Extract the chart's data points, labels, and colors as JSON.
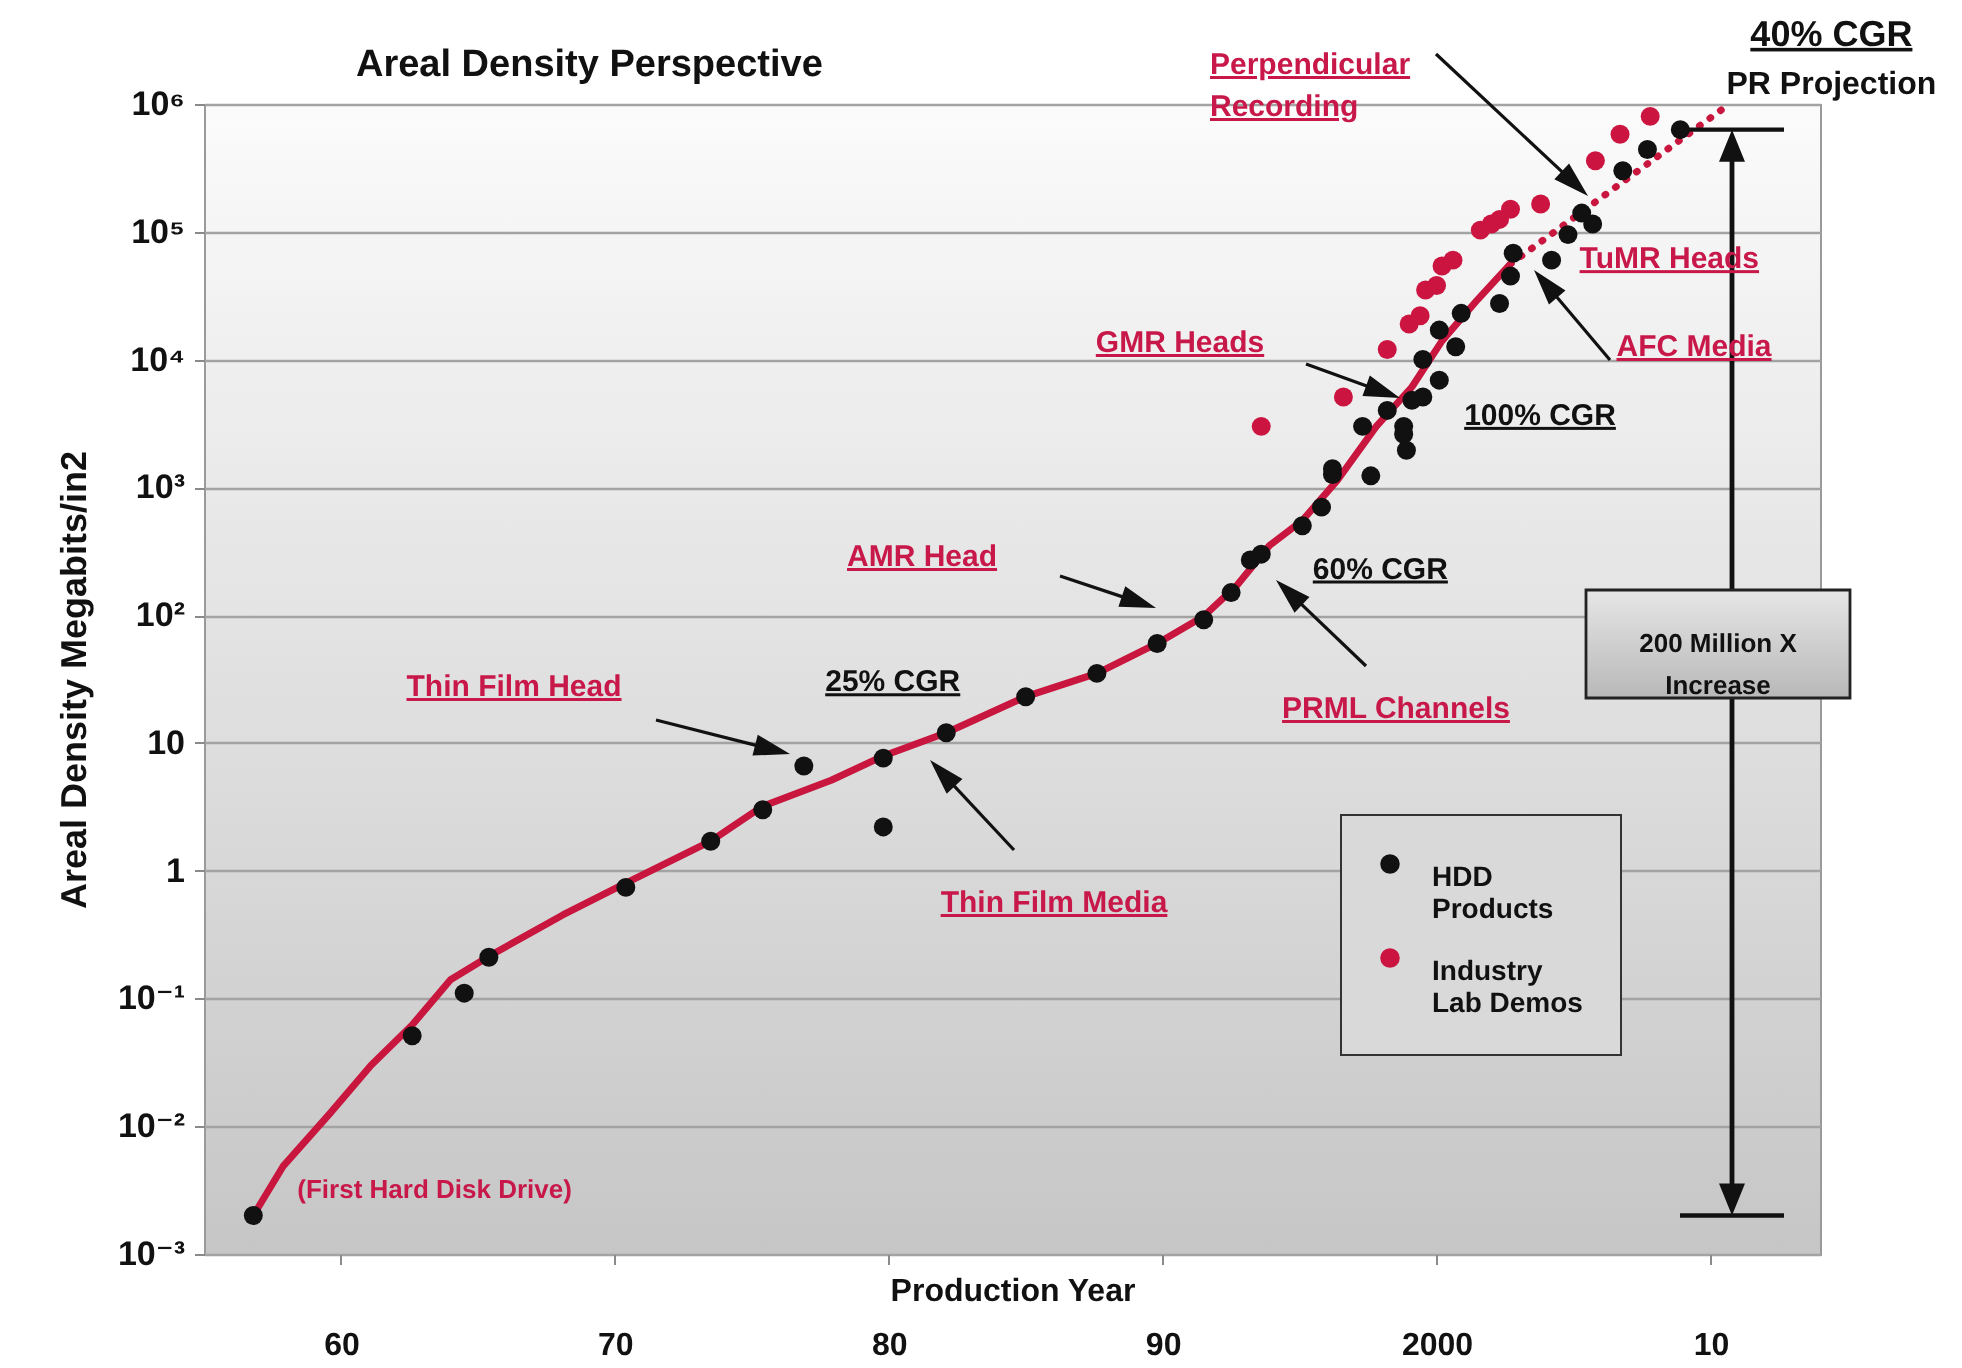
{
  "chart_data": {
    "type": "scatter",
    "title": "Areal Density Perspective",
    "xlabel": "Production Year",
    "ylabel": "Areal Density Megabits/in2",
    "xlim": [
      1955,
      2014
    ],
    "ylim": [
      0.001,
      1000000
    ],
    "log": "y",
    "xticks": [
      {
        "value": 1960,
        "label": "60"
      },
      {
        "value": 1970,
        "label": "70"
      },
      {
        "value": 1980,
        "label": "80"
      },
      {
        "value": 1990,
        "label": "90"
      },
      2000,
      {
        "value": 2010,
        "label": "10"
      }
    ],
    "yticks": [
      {
        "value": 0.001,
        "label": "10⁻³"
      },
      {
        "value": 0.01,
        "label": "10⁻²"
      },
      {
        "value": 0.1,
        "label": "10⁻¹"
      },
      1,
      10,
      {
        "value": 100,
        "label": "10²"
      },
      {
        "value": 1000,
        "label": "10³"
      },
      {
        "value": 10000,
        "label": "10⁴"
      },
      {
        "value": 100000,
        "label": "10⁵"
      },
      {
        "value": 1000000,
        "label": "10⁶"
      }
    ],
    "grid": "y",
    "legend": "bottom right",
    "marker": "circle",
    "line_style": "solid",
    "series": [
      {
        "name": "HDD Products",
        "color": "#111111",
        "x": [
          1956.8,
          1962.6,
          1964.5,
          1965.4,
          1970.4,
          1973.5,
          1975.4,
          1976.9,
          1979.8,
          1979.8,
          1982.1,
          1985.0,
          1987.6,
          1989.8,
          1991.5,
          1992.5,
          1993.2,
          1993.6,
          1995.1,
          1995.8,
          1996.2,
          1996.2,
          1997.3,
          1997.6,
          1998.2,
          1998.8,
          1998.8,
          1998.9,
          1999.1,
          1999.5,
          1999.5,
          2000.1,
          2000.1,
          2000.7,
          2000.9,
          2002.3,
          2002.7,
          2002.8,
          2004.2,
          2004.8,
          2005.3,
          2005.7,
          2006.8,
          2007.7,
          2008.9
        ],
        "values": [
          0.002,
          0.051,
          0.11,
          0.21,
          0.74,
          1.7,
          3.0,
          6.6,
          7.6,
          2.2,
          12,
          23,
          35,
          60,
          92,
          150,
          270,
          300,
          500,
          700,
          1260,
          1400,
          3000,
          1230,
          4000,
          3000,
          2600,
          1950,
          4800,
          5100,
          10000,
          6900,
          17000,
          12600,
          23000,
          27500,
          45000,
          68000,
          60000,
          95000,
          140000,
          115000,
          300000,
          440000,
          630000
        ]
      },
      {
        "name": "Industry Lab Demos",
        "color": "#cc1440",
        "x": [
          1993.6,
          1996.6,
          1998.2,
          1999.0,
          1999.4,
          1999.6,
          2000.0,
          2000.2,
          2000.6,
          2001.6,
          2002.0,
          2002.3,
          2002.7,
          2003.8,
          2005.8,
          2006.7,
          2007.8
        ],
        "values": [
          3000,
          5100,
          12000,
          19000,
          22000,
          35000,
          38000,
          54000,
          60000,
          103000,
          115000,
          125000,
          150000,
          165000,
          360000,
          580000,
          800000
        ]
      },
      {
        "type": "line",
        "color": "#c8163e",
        "marker": "none",
        "x": [
          1956.8,
          1957.9,
          1959.6,
          1961.1,
          1962.6,
          1964.0,
          1965.5,
          1968.1,
          1970.4,
          1973.5,
          1975.4,
          1977.9,
          1979.8,
          1982.1,
          1985.0,
          1987.6,
          1989.8,
          1991.5,
          1992.7,
          1993.9,
          1995.1,
          1996.4,
          1997.8,
          1999.1,
          2000.2,
          2001.5,
          2002.7
        ],
        "values": [
          0.002,
          0.0049,
          0.0126,
          0.03,
          0.062,
          0.14,
          0.22,
          0.45,
          0.8,
          1.7,
          3.2,
          5.1,
          7.9,
          12,
          23,
          35,
          60,
          98,
          170,
          350,
          550,
          1150,
          3000,
          6100,
          14000,
          29500,
          56000
        ]
      },
      {
        "type": "line",
        "color": "#c8163e",
        "marker": "none",
        "line_style": "dotted",
        "x": [
          2002.7,
          2010.4
        ],
        "values": [
          56000,
          900000
        ]
      }
    ],
    "annotations": [
      "Perpendicular Recording",
      {
        "text": "40% CGR",
        "x": 2010.4,
        "y": 900000
      },
      {
        "text": "PR Projection",
        "x": 2010.4,
        "y": 900000
      },
      {
        "text": "TuMR Heads",
        "x": 2004.2,
        "y": 60000
      },
      "AFC Media",
      "GMR Heads",
      {
        "text": "100% CGR",
        "x": 2000.2,
        "y": 14000
      },
      "AMR Head",
      {
        "text": "60% CGR",
        "x": 1995.1,
        "y": 550
      },
      "PRML Channels",
      "Thin Film Head",
      {
        "text": "25% CGR",
        "x": 1980,
        "y": 8
      },
      "Thin Film Media",
      {
        "text": "(First Hard Disk Drive)",
        "x": 1956.8,
        "y": 0.002
      },
      "200 Million X Increase"
    ]
  }
}
